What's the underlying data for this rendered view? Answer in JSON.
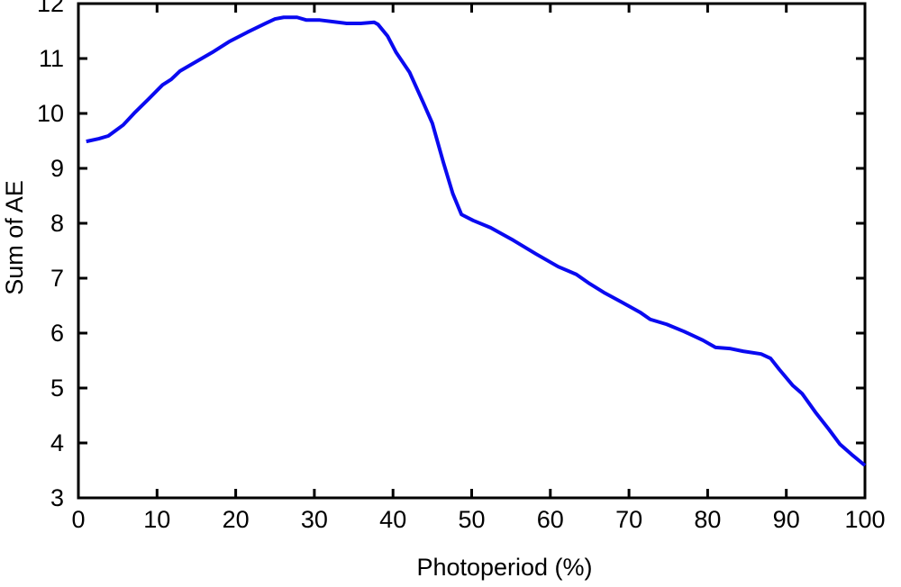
{
  "chart_data": {
    "type": "line",
    "xlabel": "Photoperiod (%)",
    "ylabel": "Sum of AE",
    "x": [
      1,
      2.6,
      3.8,
      5.7,
      7.2,
      8.9,
      10.7,
      11.8,
      12.9,
      14.7,
      17,
      19.2,
      21.5,
      23.8,
      25,
      26.1,
      27.8,
      29,
      30.7,
      32.4,
      34.1,
      35.9,
      37.6,
      38.1,
      39.3,
      40.4,
      42.1,
      43.9,
      45,
      46.4,
      47.6,
      48.7,
      50.2,
      52.4,
      55.3,
      58.2,
      61,
      63.3,
      65,
      66.8,
      69,
      71.4,
      72.7,
      74.8,
      77,
      79.4,
      81,
      82.8,
      84.5,
      86.8,
      88,
      89.1,
      90.8,
      92,
      93.7,
      95.4,
      96.8,
      98.3,
      100
    ],
    "series": [
      {
        "color": "#0a0af0",
        "values": [
          9.49,
          9.54,
          9.59,
          9.79,
          10.02,
          10.26,
          10.52,
          10.62,
          10.77,
          10.92,
          11.11,
          11.31,
          11.48,
          11.64,
          11.72,
          11.75,
          11.75,
          11.7,
          11.7,
          11.67,
          11.64,
          11.64,
          11.66,
          11.62,
          11.41,
          11.11,
          10.75,
          10.18,
          9.82,
          9.11,
          8.54,
          8.16,
          8.05,
          7.92,
          7.69,
          7.44,
          7.21,
          7.07,
          6.9,
          6.74,
          6.57,
          6.38,
          6.25,
          6.16,
          6.03,
          5.87,
          5.74,
          5.72,
          5.67,
          5.62,
          5.54,
          5.34,
          5.05,
          4.9,
          4.56,
          4.25,
          3.98,
          3.79,
          3.59
        ]
      }
    ],
    "xlim": [
      0,
      100
    ],
    "xticks": [
      0,
      10,
      20,
      30,
      40,
      50,
      60,
      70,
      80,
      90,
      100
    ],
    "ylim": [
      3,
      12
    ],
    "yticks": [
      3,
      4,
      5,
      6,
      7,
      8,
      9,
      10,
      11,
      12
    ]
  }
}
